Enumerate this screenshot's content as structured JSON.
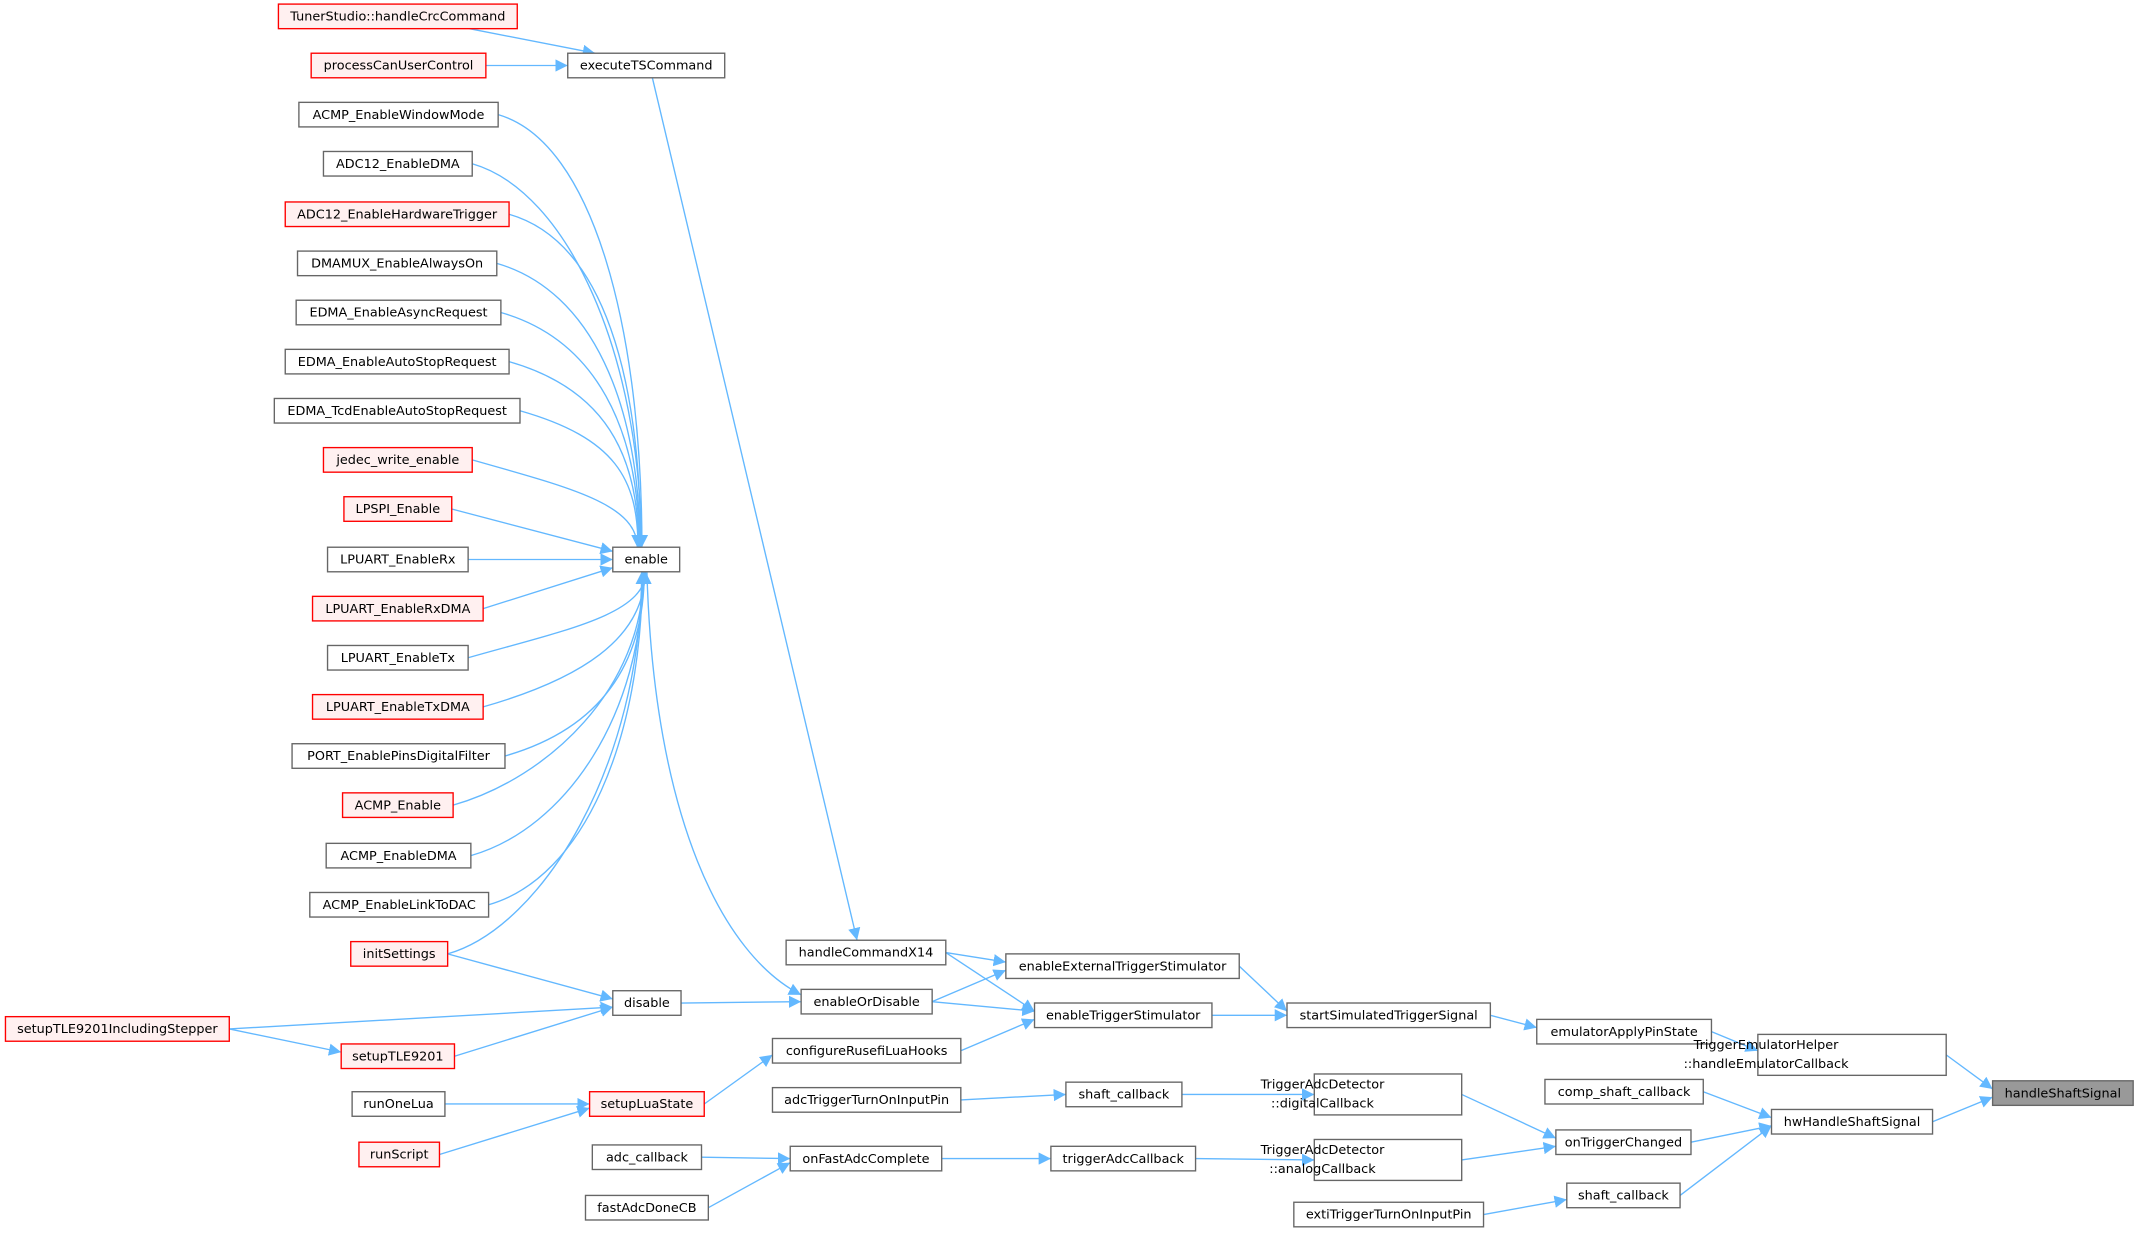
{
  "graph": {
    "edge_color": "#63b8ff",
    "nodes": [
      {
        "id": "tsCrc",
        "lines": [
          "TunerStudio::handleCrcCommand"
        ],
        "style": "red"
      },
      {
        "id": "canUser",
        "lines": [
          "processCanUserControl"
        ],
        "style": "red"
      },
      {
        "id": "execTS",
        "lines": [
          "executeTSCommand"
        ],
        "style": "normal"
      },
      {
        "id": "acmpWin",
        "lines": [
          "ACMP_EnableWindowMode"
        ],
        "style": "normal"
      },
      {
        "id": "adcDma",
        "lines": [
          "ADC12_EnableDMA"
        ],
        "style": "normal"
      },
      {
        "id": "adcHw",
        "lines": [
          "ADC12_EnableHardwareTrigger"
        ],
        "style": "red"
      },
      {
        "id": "dmamux",
        "lines": [
          "DMAMUX_EnableAlwaysOn"
        ],
        "style": "normal"
      },
      {
        "id": "edmaAsync",
        "lines": [
          "EDMA_EnableAsyncRequest"
        ],
        "style": "normal"
      },
      {
        "id": "edmaAuto",
        "lines": [
          "EDMA_EnableAutoStopRequest"
        ],
        "style": "normal"
      },
      {
        "id": "edmaTcd",
        "lines": [
          "EDMA_TcdEnableAutoStopRequest"
        ],
        "style": "normal"
      },
      {
        "id": "jedec",
        "lines": [
          "jedec_write_enable"
        ],
        "style": "red"
      },
      {
        "id": "lpspi",
        "lines": [
          "LPSPI_Enable"
        ],
        "style": "red"
      },
      {
        "id": "lpuartRx",
        "lines": [
          "LPUART_EnableRx"
        ],
        "style": "normal"
      },
      {
        "id": "enable",
        "lines": [
          "enable"
        ],
        "style": "normal"
      },
      {
        "id": "lpuartRxDma",
        "lines": [
          "LPUART_EnableRxDMA"
        ],
        "style": "red"
      },
      {
        "id": "lpuartTx",
        "lines": [
          "LPUART_EnableTx"
        ],
        "style": "normal"
      },
      {
        "id": "lpuartTxDma",
        "lines": [
          "LPUART_EnableTxDMA"
        ],
        "style": "red"
      },
      {
        "id": "portFilter",
        "lines": [
          "PORT_EnablePinsDigitalFilter"
        ],
        "style": "normal"
      },
      {
        "id": "acmpEn",
        "lines": [
          "ACMP_Enable"
        ],
        "style": "red"
      },
      {
        "id": "acmpDma",
        "lines": [
          "ACMP_EnableDMA"
        ],
        "style": "normal"
      },
      {
        "id": "acmpDac",
        "lines": [
          "ACMP_EnableLinkToDAC"
        ],
        "style": "normal"
      },
      {
        "id": "initSettings",
        "lines": [
          "initSettings"
        ],
        "style": "red"
      },
      {
        "id": "x14",
        "lines": [
          "handleCommandX14"
        ],
        "style": "normal"
      },
      {
        "id": "extStim",
        "lines": [
          "enableExternalTriggerStimulator"
        ],
        "style": "normal"
      },
      {
        "id": "disable",
        "lines": [
          "disable"
        ],
        "style": "normal"
      },
      {
        "id": "enOrDis",
        "lines": [
          "enableOrDisable"
        ],
        "style": "normal"
      },
      {
        "id": "trigStim",
        "lines": [
          "enableTriggerStimulator"
        ],
        "style": "normal"
      },
      {
        "id": "startSim",
        "lines": [
          "startSimulatedTriggerSignal"
        ],
        "style": "normal"
      },
      {
        "id": "tleStepper",
        "lines": [
          "setupTLE9201IncludingStepper"
        ],
        "style": "red"
      },
      {
        "id": "emuPin",
        "lines": [
          "emulatorApplyPinState"
        ],
        "style": "normal"
      },
      {
        "id": "luaHooks",
        "lines": [
          "configureRusefiLuaHooks"
        ],
        "style": "normal"
      },
      {
        "id": "tle",
        "lines": [
          "setupTLE9201"
        ],
        "style": "red"
      },
      {
        "id": "emuHelper",
        "lines": [
          "TriggerEmulatorHelper",
          "::handleEmulatorCallback"
        ],
        "style": "normal"
      },
      {
        "id": "handleShaft",
        "lines": [
          "handleShaftSignal"
        ],
        "style": "focus"
      },
      {
        "id": "runOneLua",
        "lines": [
          "runOneLua"
        ],
        "style": "normal"
      },
      {
        "id": "luaState",
        "lines": [
          "setupLuaState"
        ],
        "style": "red"
      },
      {
        "id": "adcTrigPin",
        "lines": [
          "adcTriggerTurnOnInputPin"
        ],
        "style": "normal"
      },
      {
        "id": "shaftCb1",
        "lines": [
          "shaft_callback"
        ],
        "style": "normal"
      },
      {
        "id": "digCb",
        "lines": [
          "TriggerAdcDetector",
          "::digitalCallback"
        ],
        "style": "normal"
      },
      {
        "id": "compShaft",
        "lines": [
          "comp_shaft_callback"
        ],
        "style": "normal"
      },
      {
        "id": "hwShaft",
        "lines": [
          "hwHandleShaftSignal"
        ],
        "style": "normal"
      },
      {
        "id": "onTrig",
        "lines": [
          "onTriggerChanged"
        ],
        "style": "normal"
      },
      {
        "id": "runScript",
        "lines": [
          "runScript"
        ],
        "style": "red"
      },
      {
        "id": "adcCb",
        "lines": [
          "adc_callback"
        ],
        "style": "normal"
      },
      {
        "id": "fastAdc",
        "lines": [
          "onFastAdcComplete"
        ],
        "style": "normal"
      },
      {
        "id": "trigAdcCb",
        "lines": [
          "triggerAdcCallback"
        ],
        "style": "normal"
      },
      {
        "id": "anaCb",
        "lines": [
          "TriggerAdcDetector",
          "::analogCallback"
        ],
        "style": "normal"
      },
      {
        "id": "shaftCb2",
        "lines": [
          "shaft_callback"
        ],
        "style": "normal"
      },
      {
        "id": "extiPin",
        "lines": [
          "extiTriggerTurnOnInputPin"
        ],
        "style": "normal"
      },
      {
        "id": "fastAdcDone",
        "lines": [
          "fastAdcDoneCB"
        ],
        "style": "normal"
      }
    ],
    "edges": [
      [
        "tsCrc",
        "execTS"
      ],
      [
        "canUser",
        "execTS"
      ],
      [
        "execTS",
        "x14"
      ],
      [
        "acmpWin",
        "enable"
      ],
      [
        "adcDma",
        "enable"
      ],
      [
        "adcHw",
        "enable"
      ],
      [
        "dmamux",
        "enable"
      ],
      [
        "edmaAsync",
        "enable"
      ],
      [
        "edmaAuto",
        "enable"
      ],
      [
        "edmaTcd",
        "enable"
      ],
      [
        "jedec",
        "enable"
      ],
      [
        "lpspi",
        "enable"
      ],
      [
        "lpuartRx",
        "enable"
      ],
      [
        "lpuartRxDma",
        "enable"
      ],
      [
        "lpuartTx",
        "enable"
      ],
      [
        "lpuartTxDma",
        "enable"
      ],
      [
        "portFilter",
        "enable"
      ],
      [
        "acmpEn",
        "enable"
      ],
      [
        "acmpDma",
        "enable"
      ],
      [
        "acmpDac",
        "enable"
      ],
      [
        "initSettings",
        "enable"
      ],
      [
        "enable",
        "enOrDis"
      ],
      [
        "initSettings",
        "disable"
      ],
      [
        "tleStepper",
        "disable"
      ],
      [
        "tleStepper",
        "tle"
      ],
      [
        "tle",
        "disable"
      ],
      [
        "disable",
        "enOrDis"
      ],
      [
        "x14",
        "extStim"
      ],
      [
        "x14",
        "trigStim"
      ],
      [
        "enOrDis",
        "extStim"
      ],
      [
        "enOrDis",
        "trigStim"
      ],
      [
        "luaHooks",
        "trigStim"
      ],
      [
        "runOneLua",
        "luaState"
      ],
      [
        "runScript",
        "luaState"
      ],
      [
        "luaState",
        "luaHooks"
      ],
      [
        "adcTrigPin",
        "shaftCb1"
      ],
      [
        "adcCb",
        "fastAdc"
      ],
      [
        "fastAdcDone",
        "fastAdc"
      ],
      [
        "fastAdc",
        "trigAdcCb"
      ],
      [
        "trigAdcCb",
        "anaCb"
      ],
      [
        "shaftCb1",
        "digCb"
      ],
      [
        "extStim",
        "startSim"
      ],
      [
        "trigStim",
        "startSim"
      ],
      [
        "startSim",
        "emuPin"
      ],
      [
        "emuPin",
        "emuHelper"
      ],
      [
        "emuHelper",
        "handleShaft"
      ],
      [
        "digCb",
        "onTrig"
      ],
      [
        "anaCb",
        "onTrig"
      ],
      [
        "onTrig",
        "hwShaft"
      ],
      [
        "compShaft",
        "hwShaft"
      ],
      [
        "shaftCb2",
        "hwShaft"
      ],
      [
        "extiPin",
        "shaftCb2"
      ],
      [
        "hwShaft",
        "handleShaft"
      ]
    ]
  }
}
